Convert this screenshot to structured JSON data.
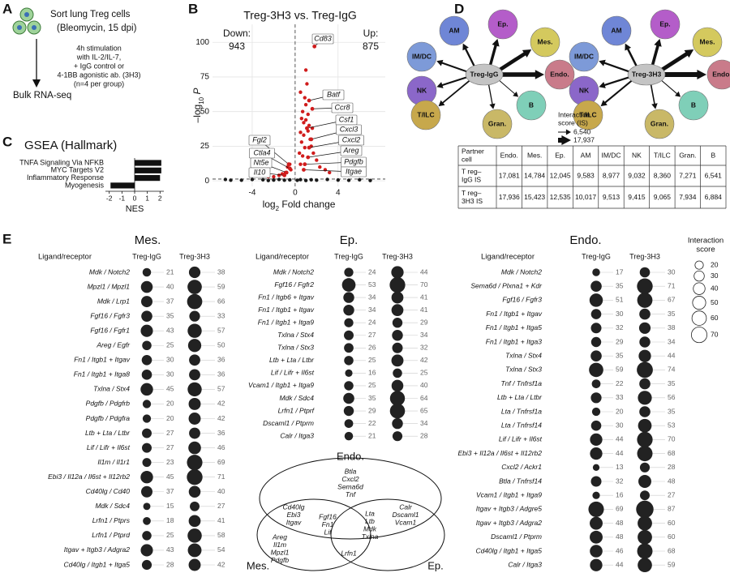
{
  "panel_labels": [
    "A",
    "B",
    "C",
    "D",
    "E"
  ],
  "panel_a": {
    "steps": [
      "Sort lung Treg cells",
      "(Bleomycin, 15 dpi)"
    ],
    "stimulation": [
      "4h stimulation",
      "with IL-2/IL-7,",
      "+ IgG control or",
      "4-1BB agonistic ab. (3H3)",
      "(n=4 per group)"
    ],
    "readout": "Bulk RNA-seq"
  },
  "chart_data": [
    {
      "type": "scatter",
      "title": "Treg-3H3 vs. Treg-IgG",
      "x_label": {
        "base": "log",
        "sub": "2",
        "rest": " Fold change"
      },
      "y_label": {
        "base": "–log",
        "sub": "10",
        "rest": " P"
      },
      "down_label": "Down:",
      "down_count": 943,
      "up_label": "Up:",
      "up_count": 875,
      "xlim": [
        -7.7,
        8.4
      ],
      "xticks": [
        -4,
        0,
        4
      ],
      "ylim": [
        -4,
        113
      ],
      "yticks": [
        0,
        25,
        50,
        75,
        100
      ],
      "grid": true,
      "thresholds": {
        "x": 0,
        "y": 1.3
      },
      "series": [
        {
          "color": "#d01c1c",
          "x": [
            0.4,
            0.5,
            0.6,
            0.7,
            0.8,
            0.9,
            1.0,
            1.1,
            1.2,
            1.3,
            1.4,
            1.5,
            1.7,
            2.0,
            2.3,
            2.8,
            3.2,
            0.6,
            0.8,
            1.0,
            1.2,
            0.5,
            0.7,
            0.9,
            -0.4,
            -0.5,
            -0.7,
            -0.9,
            -1.2,
            -1.5,
            -2.0,
            -2.5,
            0.5,
            1.0,
            1.6
          ],
          "values": [
            20,
            35,
            45,
            50,
            42,
            60,
            55,
            70,
            48,
            40,
            30,
            25,
            20,
            15,
            10,
            8,
            6,
            28,
            33,
            44,
            36,
            12,
            18,
            24,
            8,
            12,
            10,
            6,
            5,
            4,
            3,
            3,
            64,
            80,
            38
          ]
        },
        {
          "color": "#1a1a1a",
          "x": [
            -6.5,
            -5,
            -4,
            -3,
            -2.5,
            -2,
            -1.5,
            -1,
            -0.5,
            0.2,
            0.5,
            1,
            1.5,
            2,
            3,
            4,
            5,
            6,
            7,
            -6
          ],
          "values": [
            1,
            0.5,
            1,
            0.8,
            0.3,
            0.6,
            1,
            0.5,
            0.7,
            0.4,
            0.9,
            0.3,
            0.8,
            0.5,
            1,
            0.6,
            0.4,
            0.8,
            0.3,
            0.5
          ]
        }
      ],
      "labeled": {
        "color": "#d01c1c",
        "labels": [
          "Cd83",
          "Batf",
          "Ccr8",
          "Csf1",
          "Cxcl3",
          "Cxcl2",
          "Areg",
          "Pdgfb",
          "Itgae",
          "Fgl2",
          "Ctla4",
          "Nt5e",
          "Il10"
        ],
        "x": [
          1.8,
          1.3,
          1.6,
          1.1,
          1.5,
          1.3,
          1.2,
          0.9,
          0.8,
          -0.6,
          -0.5,
          -0.8,
          -1.0
        ],
        "values": [
          97,
          58,
          52,
          38,
          30,
          24,
          17,
          12,
          8,
          12,
          9,
          6,
          4
        ]
      }
    },
    {
      "type": "bar",
      "orientation": "horizontal",
      "title": "GSEA (Hallmark)",
      "categories": [
        "TNFA Signaling Via NFKB",
        "MYC Targets V2",
        "Inflammatory Response",
        "Myogenesis"
      ],
      "values": [
        2.1,
        2.1,
        2.0,
        -1.9
      ],
      "color": "#111111",
      "x_label": "NES",
      "xlim": [
        -2.3,
        2.3
      ],
      "xticks": [
        -2,
        -1,
        0,
        1,
        2
      ]
    },
    {
      "type": "dot",
      "title": "Mes.",
      "row_header": "Ligand/receptor",
      "categories": [
        "Mdk / Notch2",
        "Mpzl1 / Mpzl1",
        "Mdk / Lrp1",
        "Fgf16 / Fgfr3",
        "Fgf16 / Fgfr1",
        "Areg / Egfr",
        "Fn1 / Itgb1 + Itgav",
        "Fn1 / Itgb1 + Itga8",
        "Txlna / Stx4",
        "Pdgfb / Pdgfrb",
        "Pdgfb / Pdgfra",
        "Ltb + Lta / Ltbr",
        "Lif / Lifr + Il6st",
        "Il1m / Il1r1",
        "Ebi3 / Il12a / Il6st + Il12rb2",
        "Cd40lg / Cd40",
        "Mdk / Sdc4",
        "Lrfn1 / Ptprs",
        "Lrfn1 / Ptprd",
        "Itgav + Itgb3 / Adgra2",
        "Cd40lg / Itgb1 + Itga5"
      ],
      "series": [
        {
          "name": "Treg-IgG",
          "values": [
            21,
            40,
            37,
            35,
            43,
            25,
            30,
            30,
            45,
            20,
            20,
            27,
            27,
            23,
            45,
            37,
            15,
            18,
            25,
            43,
            28
          ]
        },
        {
          "name": "Treg-3H3",
          "values": [
            38,
            59,
            66,
            33,
            57,
            50,
            36,
            36,
            57,
            42,
            42,
            36,
            46,
            69,
            71,
            40,
            27,
            41,
            58,
            54,
            42
          ]
        }
      ],
      "color": "#222222"
    },
    {
      "type": "dot",
      "title": "Ep.",
      "row_header": "Ligand/receptor",
      "categories": [
        "Mdk / Notch2",
        "Fgf16 / Fgfr2",
        "Fn1 / Itgb6 + Itgav",
        "Fn1 / Itgb1 + Itgav",
        "Fn1 / Itgb1 + Itga9",
        "Txlna / Stx4",
        "Txlna / Stx3",
        "Ltb + Lta / Ltbr",
        "Lif / Lifr + Il6st",
        "Vcam1 / Itgb1 + Itga9",
        "Mdk / Sdc4",
        "Lrfn1 / Ptprf",
        "Dscaml1 / Ptprm",
        "Calr / Itga3"
      ],
      "series": [
        {
          "name": "Treg-IgG",
          "values": [
            24,
            53,
            34,
            34,
            24,
            27,
            26,
            25,
            16,
            25,
            35,
            29,
            22,
            21
          ]
        },
        {
          "name": "Treg-3H3",
          "values": [
            44,
            70,
            41,
            41,
            29,
            34,
            32,
            42,
            25,
            40,
            64,
            65,
            34,
            28
          ]
        }
      ],
      "color": "#222222"
    },
    {
      "type": "dot",
      "title": "Endo.",
      "row_header": "Ligand/receptor",
      "categories": [
        "Mdk / Notch2",
        "Sema6d / Plxna1 + Kdr",
        "Fgf16 / Fgfr3",
        "Fn1 / Itgb1 + Itgav",
        "Fn1 / Itgb1 + Itga5",
        "Fn1 / Itgb1 + Itga3",
        "Txlna / Stx4",
        "Txlna / Stx3",
        "Tnf / Tnfrsf1a",
        "Ltb + Lta / Ltbr",
        "Lta / Tnfrsf1a",
        "Lta / Tnfrsf14",
        "Lif / Lifr + Il6st",
        "Ebi3 + Il12a / Il6st + Il12rb2",
        "Cxcl2 / Ackr1",
        "Btla / Tnfrsf14",
        "Vcam1 / Itgb1 + Itga9",
        "Itgav + Itgb3 / Adgre5",
        "Itgav + Itgb3 / Adgra2",
        "Dscaml1 / Ptprm",
        "Cd40lg / Itgb1 + Itga5",
        "Calr / Itga3"
      ],
      "series": [
        {
          "name": "Treg-IgG",
          "values": [
            17,
            35,
            51,
            30,
            32,
            29,
            35,
            59,
            22,
            33,
            20,
            30,
            44,
            44,
            13,
            32,
            16,
            69,
            48,
            48,
            46,
            44
          ]
        },
        {
          "name": "Treg-3H3",
          "values": [
            30,
            71,
            67,
            35,
            38,
            34,
            44,
            74,
            35,
            56,
            35,
            53,
            70,
            68,
            28,
            48,
            27,
            87,
            60,
            60,
            68,
            59
          ]
        }
      ],
      "color": "#222222",
      "size_legend": {
        "title": [
          "Interaction",
          "score"
        ],
        "values": [
          20,
          30,
          40,
          50,
          60,
          70
        ]
      }
    }
  ],
  "network": {
    "centers": [
      "Treg-IgG",
      "Treg-3H3"
    ],
    "legend": {
      "title": [
        "Interaction",
        "score (IS)"
      ],
      "values": [
        {
          "value": 6540,
          "label": "6,540"
        },
        {
          "value": 17937,
          "label": "17,937"
        }
      ]
    }
  },
  "table": {
    "header": [
      [
        "Partner",
        "cell"
      ],
      "Endo.",
      "Mes.",
      "Ep.",
      "AM",
      "IM/DC",
      "NK",
      "T/ILC",
      "Gran.",
      "B"
    ],
    "rows": [
      {
        "label": [
          "T reg–",
          "IgG IS"
        ],
        "values": [
          17081,
          14784,
          12045,
          9583,
          8977,
          9032,
          8360,
          7271,
          6541
        ],
        "value_labels": [
          "17,081",
          "14,784",
          "12,045",
          "9,583",
          "8,977",
          "9,032",
          "8,360",
          "7,271",
          "6,541"
        ]
      },
      {
        "label": [
          "T reg–",
          "3H3 IS"
        ],
        "values": [
          17936,
          15423,
          12535,
          10017,
          9513,
          9415,
          9065,
          7934,
          6884
        ],
        "value_labels": [
          "17,936",
          "15,423",
          "12,535",
          "10,017",
          "9,513",
          "9,415",
          "9,065",
          "7,934",
          "6,884"
        ]
      }
    ]
  },
  "venn": {
    "sets": [
      "Endo.",
      "Mes.",
      "Ep."
    ],
    "regions": [
      [
        "Btla",
        "Cxcl2",
        "Sema6d",
        "Tnf"
      ],
      [
        "Cd40lg",
        "Ebi3",
        "Itgav"
      ],
      [
        "Calr",
        "Dscaml1",
        "Vcam1"
      ],
      [
        "Fgf16",
        "Fn1",
        "Lif"
      ],
      [
        "Lta",
        "Ltb",
        "Mdk",
        "Txlna"
      ],
      [
        "Areg",
        "Il1m",
        "Mpzl1",
        "Pdgfb"
      ],
      [
        "Lrfn1"
      ]
    ]
  }
}
